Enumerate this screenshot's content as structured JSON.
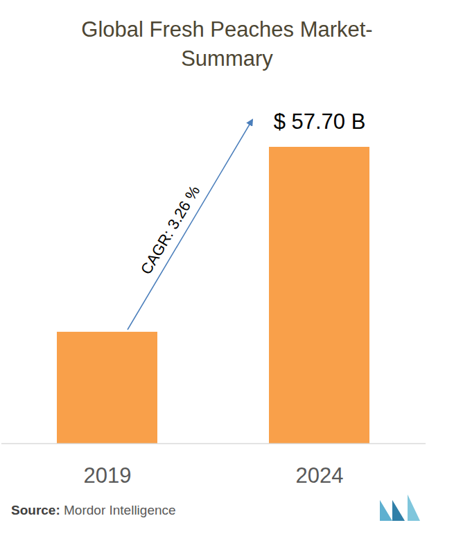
{
  "chart_data": {
    "type": "bar",
    "title": "Global Fresh Peaches Market-Summary",
    "categories": [
      "2019",
      "2024"
    ],
    "values": [
      21.7,
      57.7
    ],
    "value_labels": [
      null,
      "$ 57.70 B"
    ],
    "data_labels": true,
    "color": "#f9a04a",
    "ylim": [
      0,
      57.7
    ],
    "tick_labels": "x",
    "annotations": [
      "CAGR: 3.26 %"
    ],
    "source": "Source: Mordor Intelligence"
  }
}
